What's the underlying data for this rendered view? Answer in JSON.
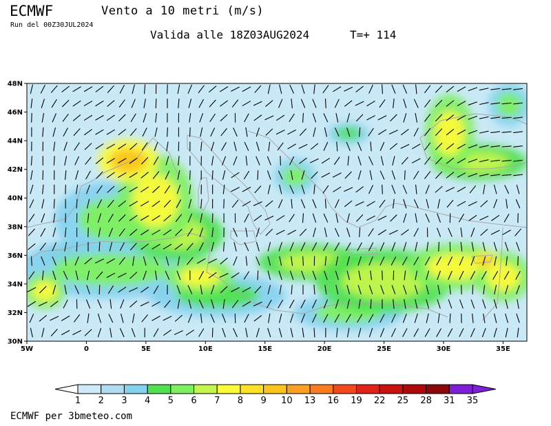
{
  "header": {
    "brand": "ECMWF",
    "title": "Vento a 10 metri (m/s)",
    "run": "Run del 00Z30JUL2024",
    "valid": "Valida alle 18Z03AUG2024",
    "step": "T=+ 114"
  },
  "footer": {
    "credit": "ECMWF per 3bmeteo.com"
  },
  "map": {
    "lat_labels": [
      "48N",
      "46N",
      "44N",
      "42N",
      "40N",
      "38N",
      "36N",
      "34N",
      "32N",
      "30N"
    ],
    "lon_labels": [
      "5W",
      "0",
      "5E",
      "10E",
      "15E",
      "20E",
      "25E",
      "30E",
      "35E"
    ],
    "lat_range": [
      30,
      48
    ],
    "lon_range": [
      -5,
      37
    ],
    "background_color": "#c9e9f6",
    "coast_color": "#a8a8a8",
    "barb_color": "#000000"
  },
  "colorbar": {
    "labels": [
      "1",
      "2",
      "3",
      "4",
      "5",
      "6",
      "7",
      "8",
      "9",
      "10",
      "13",
      "16",
      "19",
      "22",
      "25",
      "28",
      "31",
      "35"
    ],
    "colors": [
      "#ffffff",
      "#cdeaf8",
      "#aedcf0",
      "#84d2ee",
      "#4fe14f",
      "#7ef060",
      "#c4f54c",
      "#fbfb3a",
      "#fde126",
      "#fcc41b",
      "#fca023",
      "#fb7b1f",
      "#f2481c",
      "#e02117",
      "#c8100f",
      "#b0080a",
      "#8c0808",
      "#7e1ed6"
    ]
  },
  "wind_zones": [
    {
      "lon": 3.5,
      "lat": 42.6,
      "rx": 2.2,
      "ry": 1.2,
      "speed": 10
    },
    {
      "lon": 5.8,
      "lat": 39.8,
      "rx": 2.8,
      "ry": 2.6,
      "speed": 8
    },
    {
      "lon": 2.5,
      "lat": 38.5,
      "rx": 4.5,
      "ry": 2.2,
      "speed": 6
    },
    {
      "lon": 7.5,
      "lat": 37.5,
      "rx": 3.5,
      "ry": 1.5,
      "speed": 7
    },
    {
      "lon": 9.5,
      "lat": 34.5,
      "rx": 2.5,
      "ry": 1.0,
      "speed": 8
    },
    {
      "lon": 2,
      "lat": 35,
      "rx": 7,
      "ry": 1.6,
      "speed": 6
    },
    {
      "lon": -3.5,
      "lat": 33.5,
      "rx": 1.5,
      "ry": 1.0,
      "speed": 8
    },
    {
      "lon": 19,
      "lat": 35.5,
      "rx": 4,
      "ry": 1.0,
      "speed": 7
    },
    {
      "lon": 25,
      "lat": 34.2,
      "rx": 5,
      "ry": 1.8,
      "speed": 7
    },
    {
      "lon": 31,
      "lat": 35.2,
      "rx": 3.5,
      "ry": 1.3,
      "speed": 8
    },
    {
      "lon": 33.5,
      "lat": 35.6,
      "rx": 1.0,
      "ry": 0.5,
      "speed": 10
    },
    {
      "lon": 35,
      "lat": 34.5,
      "rx": 2,
      "ry": 1.4,
      "speed": 8
    },
    {
      "lon": 22,
      "lat": 32,
      "rx": 4,
      "ry": 1.0,
      "speed": 6
    },
    {
      "lon": 30.5,
      "lat": 44.5,
      "rx": 1.8,
      "ry": 2.2,
      "speed": 8
    },
    {
      "lon": 33,
      "lat": 42.5,
      "rx": 3.5,
      "ry": 1.0,
      "speed": 7
    },
    {
      "lon": 35.5,
      "lat": 46.5,
      "rx": 1.5,
      "ry": 1.2,
      "speed": 6
    },
    {
      "lon": 17.5,
      "lat": 41.5,
      "rx": 1.5,
      "ry": 1.0,
      "speed": 6
    },
    {
      "lon": 22,
      "lat": 44.5,
      "rx": 1.5,
      "ry": 0.6,
      "speed": 5
    },
    {
      "lon": 11,
      "lat": 33.2,
      "rx": 5,
      "ry": 1.2,
      "speed": 5
    },
    {
      "lon": -1,
      "lat": 36,
      "rx": 3,
      "ry": 0.8,
      "speed": 5
    }
  ]
}
